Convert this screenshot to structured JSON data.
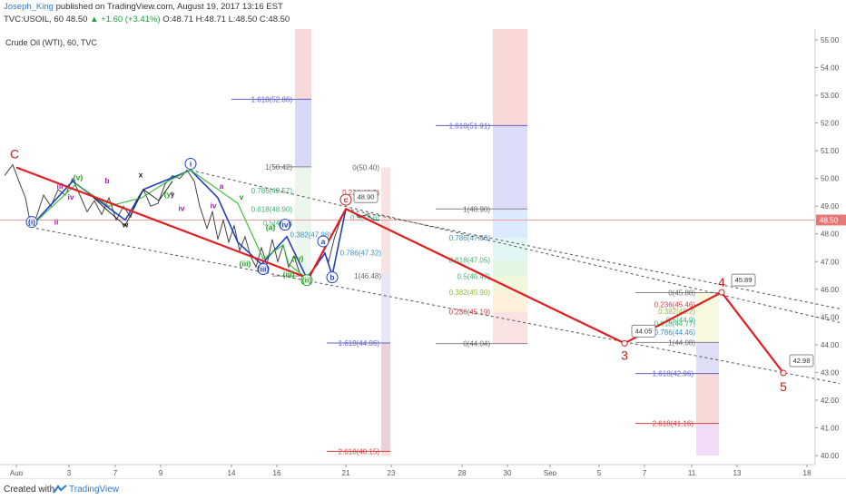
{
  "header": {
    "author": "Joseph_King",
    "published_text": " published on TradingView.com, August 19, 2017 13:16 EST",
    "symbol": "TVC:USOIL, 60",
    "last": "48.50",
    "change": "▲ +1.60 (+3.41%)",
    "ohlc": "O:48.71 H:48.71 L:48.50 C:48.50"
  },
  "chart_title": "Crude Oil (WTI), 60, TVC",
  "footer": {
    "created": "Created with",
    "brand": "TradingView"
  },
  "colors": {
    "wave_line": "#e02020",
    "blue_line": "#2040c0",
    "green_line": "#40c040",
    "price_line": "#f0a0a0",
    "fib_blue": "#6060d0",
    "fib_red": "#d04040"
  },
  "chart_data": {
    "type": "line",
    "title": "Crude Oil (WTI), 60, TVC",
    "ylim": [
      40,
      55
    ],
    "yticks": [
      "55.00",
      "54.00",
      "53.00",
      "52.00",
      "51.00",
      "50.00",
      "49.00",
      "48.00",
      "47.00",
      "46.00",
      "45.00",
      "44.00",
      "43.00",
      "42.00",
      "41.00",
      "40.00"
    ],
    "last_price": "48.50",
    "xticks": [
      "Aug",
      "3",
      "7",
      "9",
      "14",
      "16",
      "21",
      "23",
      "28",
      "30",
      "Sep",
      "5",
      "7",
      "11",
      "13",
      "18"
    ],
    "wave_points": [
      {
        "label": "C",
        "x": "Aug 1",
        "y": 50.4
      },
      {
        "label": "",
        "x": "Aug 18",
        "y": 46.4
      },
      {
        "label": "",
        "x": "Aug 21",
        "y": 48.9
      },
      {
        "label": "3",
        "x": "Sep 6",
        "y": 44.05
      },
      {
        "label": "4",
        "x": "Sep 12",
        "y": 45.89
      },
      {
        "label": "5",
        "x": "Sep 16",
        "y": 42.98
      }
    ],
    "callouts": [
      "48.90",
      "44.05",
      "45.89",
      "42.98"
    ],
    "fib_levels": [
      "1.618(52.86)",
      "1(50.42)",
      "0.786(49.57)",
      "0.618(48.90)",
      "0.5(48.4)",
      "0.382(47.98)",
      "0.786(47.32)",
      "1(46.48)",
      "1.618(44.06)",
      "2.618(40.15)",
      "0(50.40)",
      "0.236(49.5)",
      "0.5(48.6)",
      "1.618(51.91)",
      "1(48.90)",
      "0.786(47.86)",
      "0.618(47.05)",
      "0.5(46.47)",
      "0.382(45.90)",
      "0.236(45.19)",
      "0(44.04)",
      "0(45.88)",
      "0.236(45.46)",
      "0.382(45.2)",
      "0.5(44.9)",
      "0.618(44.77)",
      "0.786(44.46)",
      "1(44.08)",
      "1.618(42.96)",
      "2.618(41.16)"
    ],
    "wave_labels": [
      "i",
      "ii",
      "iii",
      "iv",
      "v",
      "(v)",
      "(iii)",
      "(iv)",
      "(ii)",
      "(i)",
      "a",
      "b",
      "c",
      "x",
      "w",
      "y",
      "(y)",
      "(a)",
      "(b)",
      "(c)",
      "ii",
      "iv",
      "iii",
      "iv",
      "(i)",
      "(ii)",
      "(iii)",
      "(iv)",
      "(v)"
    ],
    "grid": true
  }
}
